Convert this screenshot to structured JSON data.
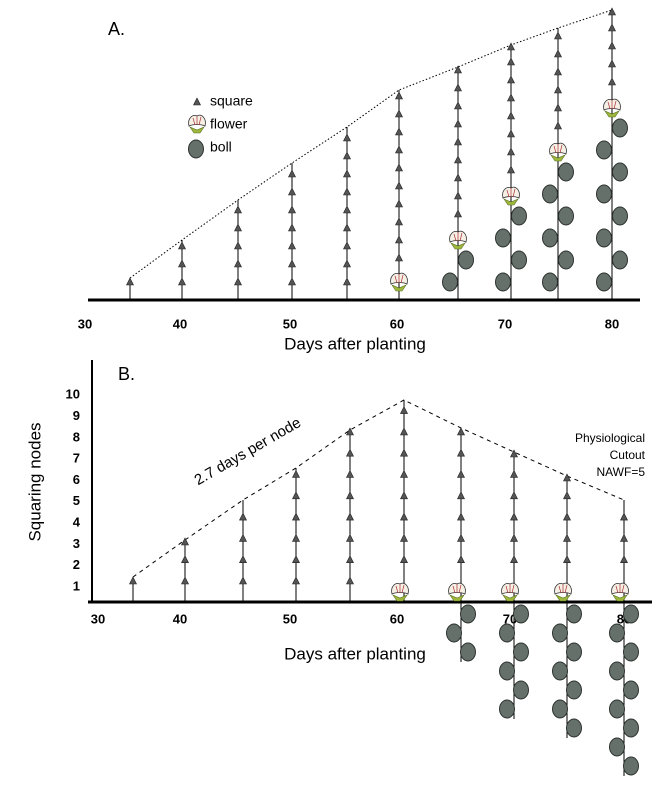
{
  "panel_a": {
    "label": "A.",
    "x_ticks": [
      30,
      40,
      50,
      60,
      70,
      80
    ],
    "x_label": "Days after planting",
    "legend": [
      "square",
      "flower",
      "boll"
    ]
  },
  "panel_b": {
    "label": "B.",
    "x_ticks": [
      30,
      40,
      50,
      60,
      70,
      80
    ],
    "y_ticks": [
      1,
      2,
      3,
      4,
      5,
      6,
      7,
      8,
      9,
      10
    ],
    "x_label": "Days after planting",
    "y_label": "Squaring nodes",
    "annotation": "2.7 days per node",
    "cutout": [
      "Physiological",
      "Cutout",
      "NAWF=5"
    ]
  }
}
